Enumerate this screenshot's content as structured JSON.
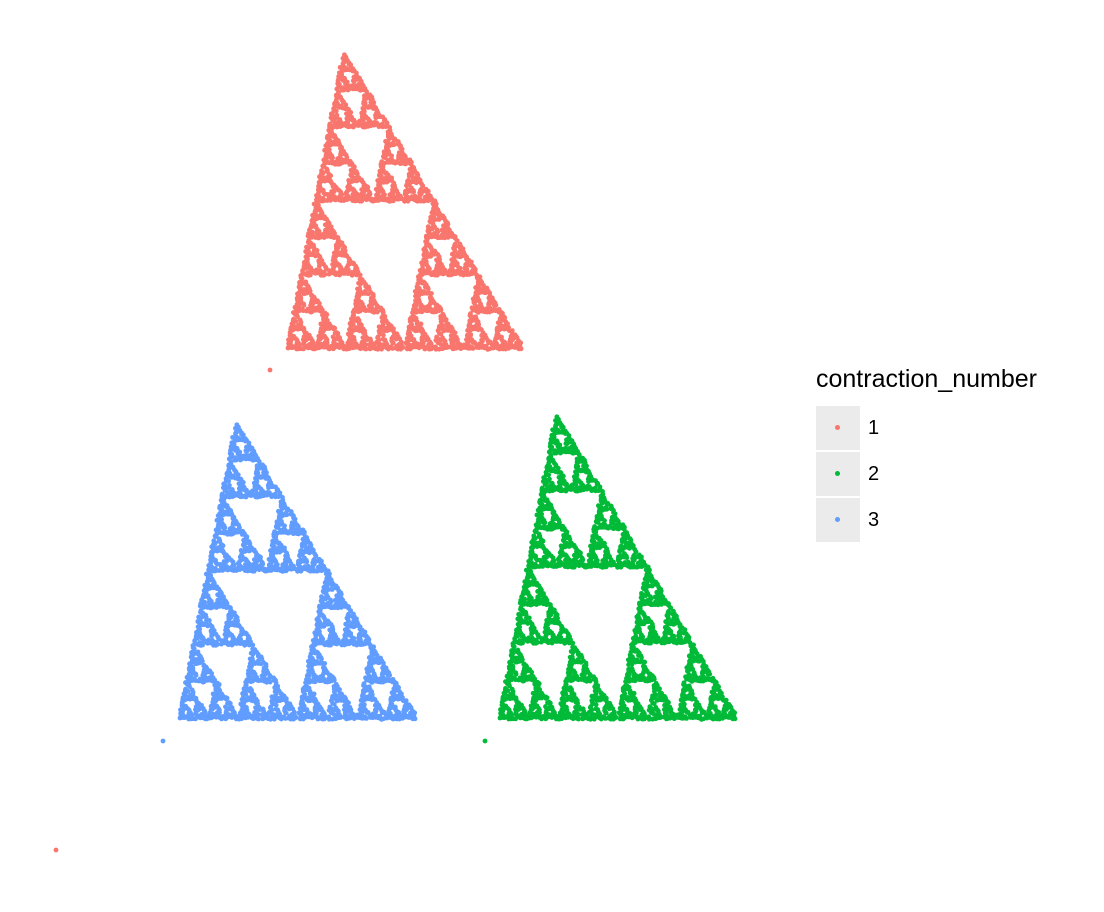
{
  "chart_data": {
    "type": "scatter",
    "title": "",
    "xlabel": "",
    "ylabel": "",
    "grid": false,
    "axes_visible": false,
    "xlim": [
      0,
      1
    ],
    "ylim": [
      0,
      1
    ],
    "legend": {
      "title": "contraction_number",
      "placement": "right",
      "items": [
        {
          "label": "1",
          "color": "#F8766D"
        },
        {
          "label": "2",
          "color": "#00BA38"
        },
        {
          "label": "3",
          "color": "#619CFF"
        }
      ]
    },
    "generator": {
      "description": "iterated function system, three contractions",
      "depth": 7,
      "contraction_ratio": 0.5,
      "series": [
        {
          "name": "1",
          "color": "#F8766D",
          "anchor": [
            0.27,
            0.62
          ],
          "scale": 0.5
        },
        {
          "name": "2",
          "color": "#00BA38",
          "anchor": [
            0.5,
            0.15
          ],
          "scale": 0.5
        },
        {
          "name": "3",
          "color": "#619CFF",
          "anchor": [
            0.15,
            0.15
          ],
          "scale": 0.5
        }
      ],
      "isolated_points": [
        {
          "series": "1",
          "x": 0.0,
          "y": 0.0
        },
        {
          "series": "3",
          "x": 0.15,
          "y": 0.14
        },
        {
          "series": "2",
          "x": 0.6,
          "y": 0.14
        }
      ]
    }
  }
}
